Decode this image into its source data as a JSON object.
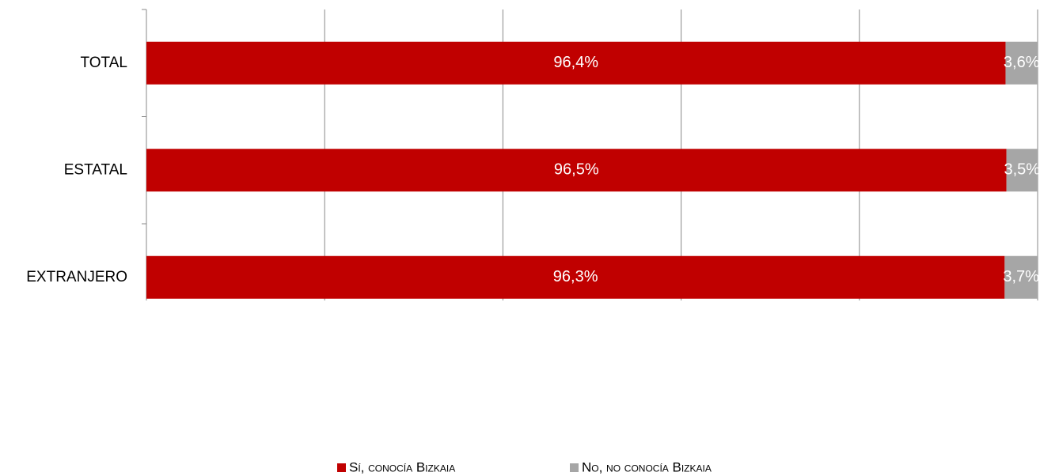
{
  "chart_data": {
    "type": "stacked-bar-horizontal",
    "categories": [
      "TOTAL",
      "ESTATAL",
      "EXTRANJERO"
    ],
    "series": [
      {
        "name": "Sí, conocía Bizkaia",
        "color": "#c00000",
        "values": [
          96.4,
          96.5,
          96.3
        ],
        "value_labels": [
          "96,4%",
          "96,5%",
          "96,3%"
        ]
      },
      {
        "name": "No, no conocía Bizkaia",
        "color": "#a6a6a6",
        "values": [
          3.6,
          3.5,
          3.7
        ],
        "value_labels": [
          "3,6%",
          "3,5%",
          "3,7%"
        ]
      }
    ],
    "xlim": [
      0,
      100
    ],
    "xticks": [
      0,
      20,
      40,
      60,
      80,
      100
    ],
    "grid": true,
    "legend": "bottom"
  }
}
